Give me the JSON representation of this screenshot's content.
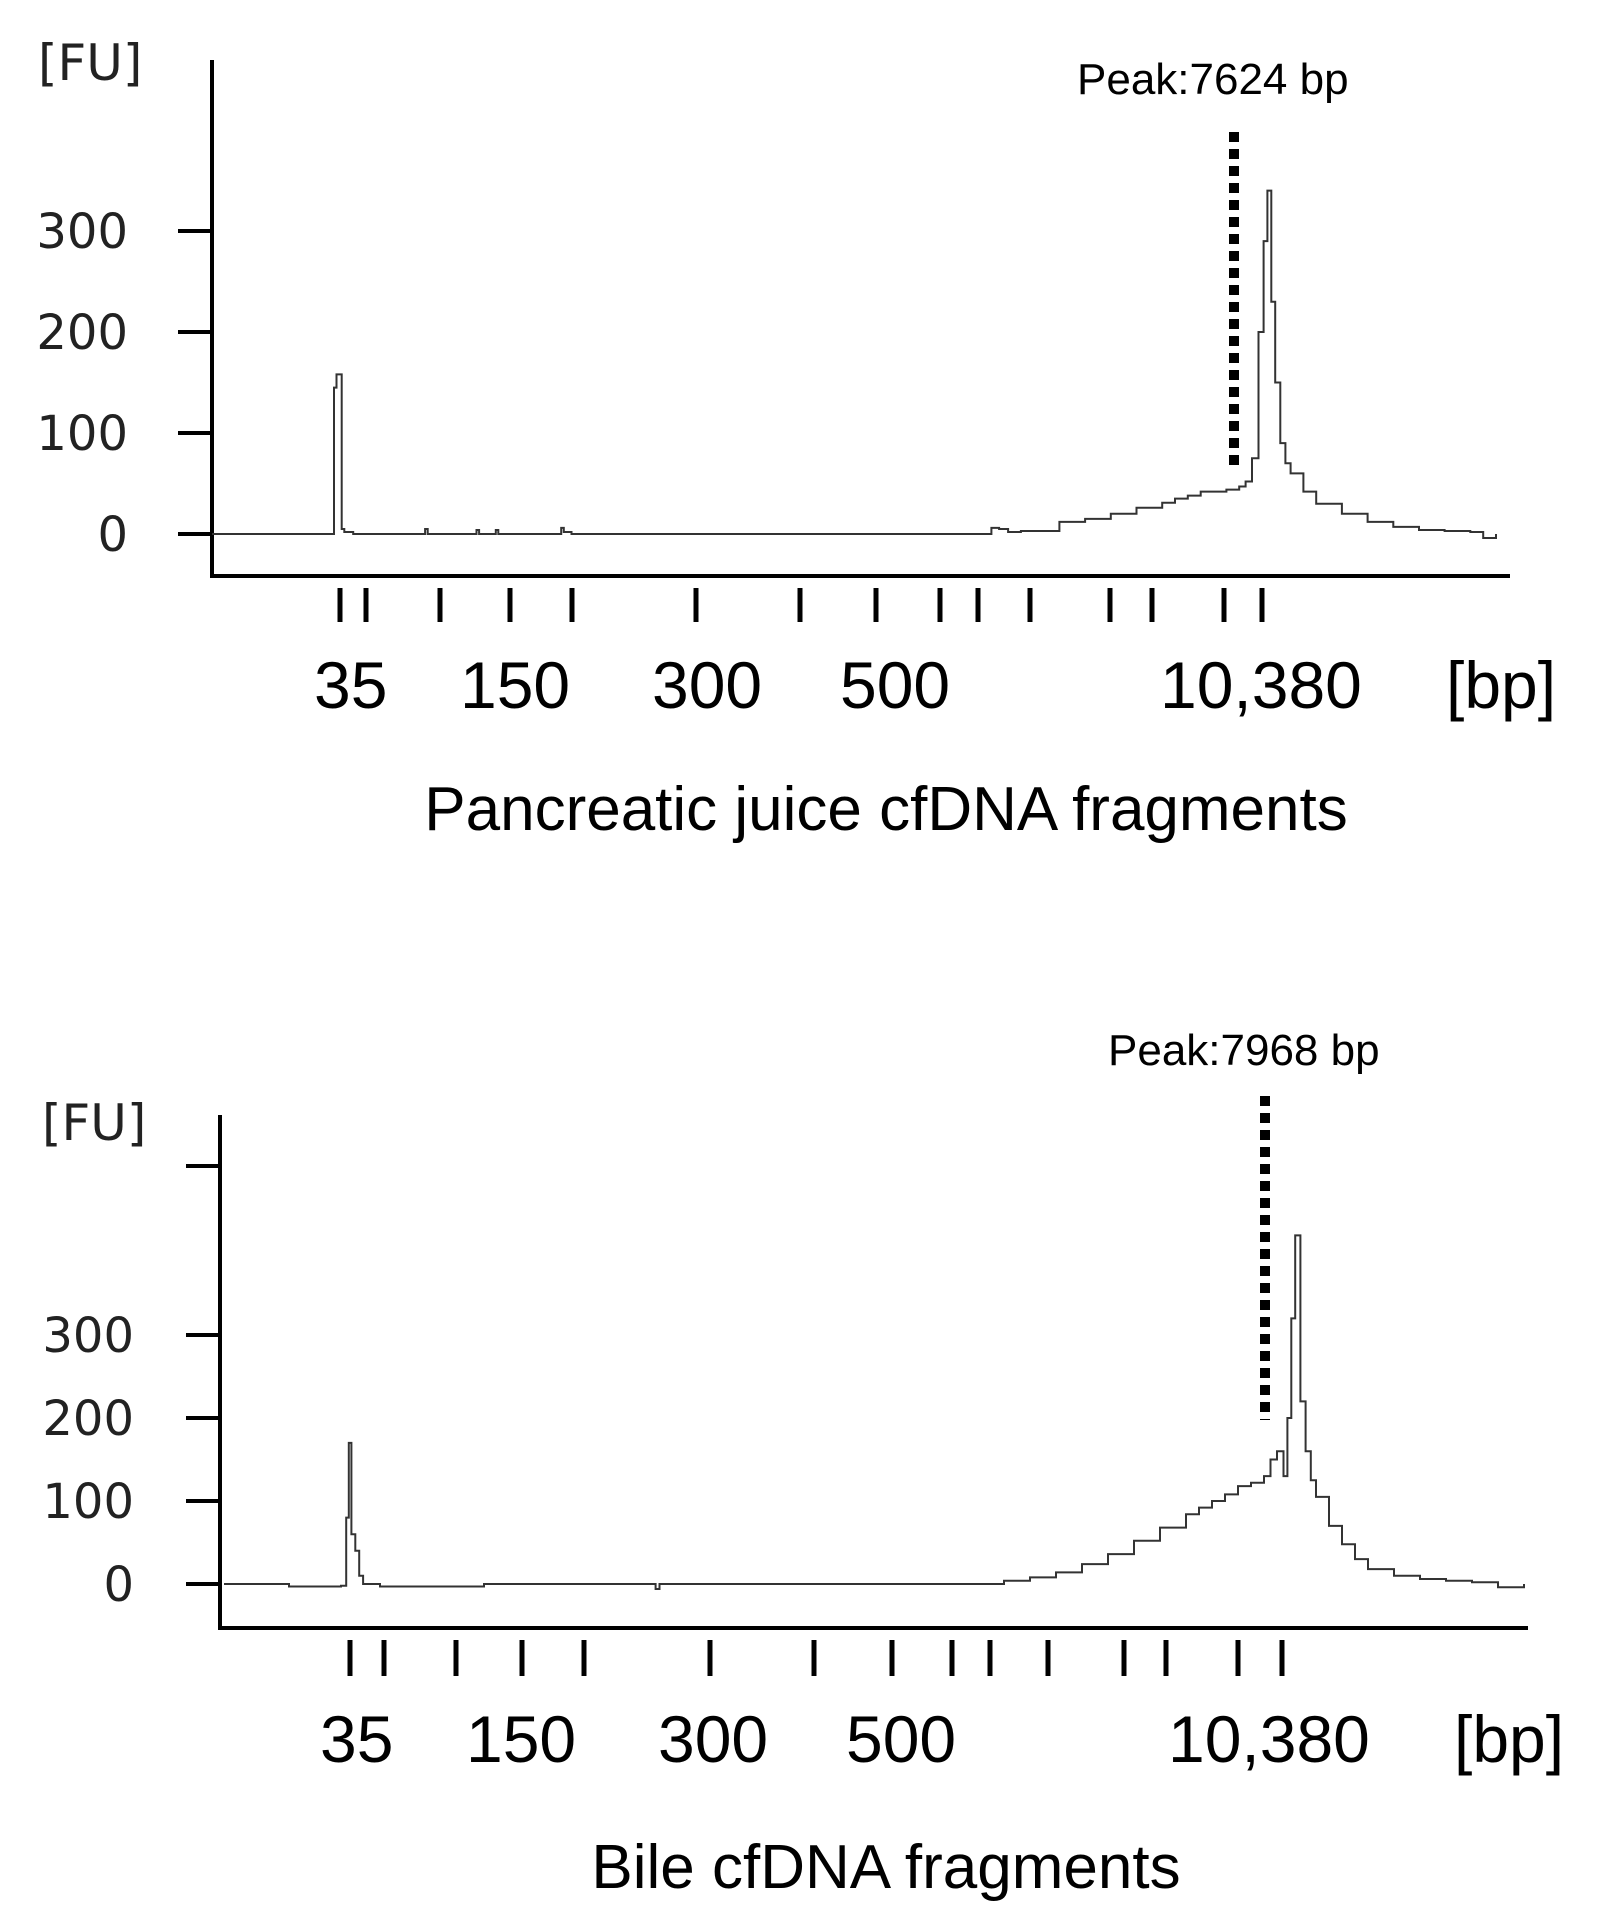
{
  "chart_data": [
    {
      "type": "line",
      "title": "Pancreatic juice cfDNA fragments",
      "ylabel": "[FU]",
      "xlabel_unit": "[bp]",
      "y_ticks": [
        0,
        100,
        200,
        300
      ],
      "ylim": [
        -35,
        360
      ],
      "x_tick_labels": [
        "35",
        "150",
        "300",
        "500",
        "10,380"
      ],
      "peak_annotation": "Peak:7624 bp",
      "x": [
        0,
        9.3,
        9.5,
        9.7,
        10.1,
        10.3,
        11,
        16.5,
        16.6,
        16.8,
        20.5,
        20.6,
        20.8,
        22,
        22.1,
        22.3,
        27,
        27.2,
        27.4,
        28,
        60.5,
        60.7,
        61.3,
        62,
        63,
        66,
        68,
        70,
        72,
        74,
        75,
        76,
        77,
        78,
        79,
        80,
        80.5,
        81,
        81.5,
        81.9,
        82.2,
        82.5,
        82.8,
        83.2,
        83.6,
        84,
        85,
        86,
        88,
        90,
        92,
        94,
        96,
        98,
        99,
        100
      ],
      "series": [
        {
          "values": [
            0,
            0,
            145,
            158,
            5,
            2,
            0,
            0,
            5,
            0,
            0,
            4,
            0,
            0,
            4,
            0,
            0,
            6,
            2,
            0,
            0,
            6,
            5,
            2,
            3,
            12,
            15,
            20,
            26,
            31,
            35,
            38,
            42,
            42,
            44,
            47,
            52,
            75,
            200,
            290,
            340,
            230,
            150,
            90,
            70,
            60,
            42,
            30,
            20,
            12,
            7,
            4,
            3,
            2,
            -4,
            0
          ]
        }
      ]
    },
    {
      "type": "line",
      "title": "Bile cfDNA fragments",
      "ylabel": "[FU]",
      "xlabel_unit": "[bp]",
      "y_ticks": [
        0,
        100,
        200,
        300
      ],
      "ylim": [
        -60,
        420
      ],
      "x_tick_labels": [
        "35",
        "150",
        "300",
        "500",
        "10,380"
      ],
      "peak_annotation": "Peak:7968 bp",
      "x": [
        0,
        5,
        9,
        9.4,
        9.6,
        9.8,
        10.1,
        10.4,
        10.7,
        12,
        20,
        30,
        33,
        33.2,
        33.5,
        40,
        58,
        60,
        62,
        64,
        66,
        68,
        70,
        72,
        74,
        75,
        76,
        77,
        78,
        79,
        80,
        80.5,
        81,
        81.5,
        81.8,
        82.1,
        82.4,
        82.8,
        83.2,
        83.6,
        84,
        85,
        86,
        87,
        88,
        90,
        92,
        94,
        96,
        98,
        100
      ],
      "series": [
        {
          "values": [
            0,
            -3,
            -2,
            80,
            170,
            60,
            40,
            10,
            0,
            -3,
            0,
            0,
            0,
            -6,
            0,
            0,
            0,
            4,
            8,
            14,
            24,
            36,
            52,
            68,
            84,
            92,
            100,
            108,
            118,
            122,
            130,
            150,
            160,
            130,
            200,
            320,
            420,
            220,
            160,
            125,
            105,
            70,
            48,
            30,
            18,
            10,
            6,
            4,
            2,
            -4,
            0
          ]
        }
      ]
    }
  ]
}
